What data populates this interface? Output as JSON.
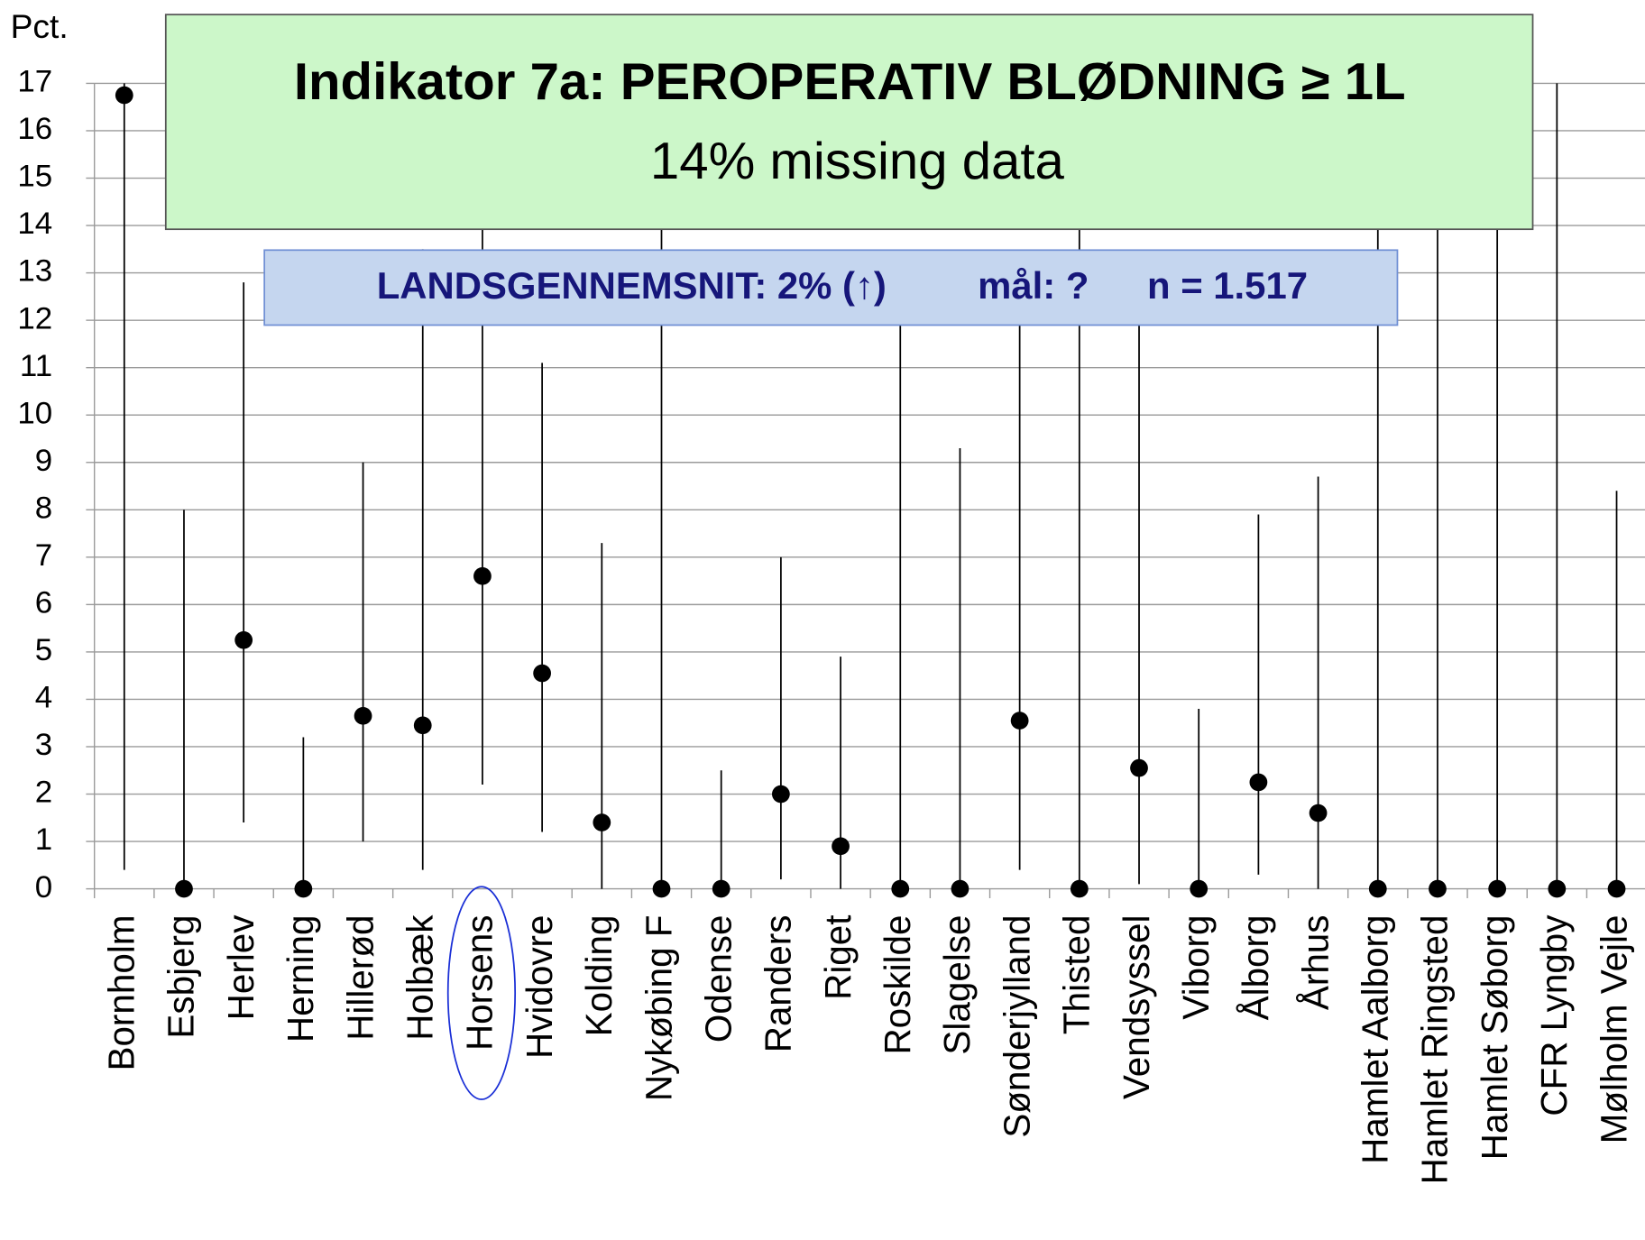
{
  "chart_data": {
    "type": "errorbar",
    "title": "Indikator 7a: PEROPERATIV BLØDNING ≥ 1L",
    "subtitle": "14% missing data",
    "annotations": [
      "LANDSGENNEMSNIT: 2% (↑)",
      "mål: ?",
      "n = 1.517"
    ],
    "y_label": "Pct.",
    "categories": [
      "Bornholm",
      "Esbjerg",
      "Herlev",
      "Herning",
      "Hillerød",
      "Holbæk",
      "Horsens",
      "Hvidovre",
      "Kolding",
      "Nykøbing F",
      "Odense",
      "Randers",
      "Riget",
      "Roskilde",
      "Slagelse",
      "Sønderjylland",
      "Thisted",
      "Vendsyssel",
      "Viborg",
      "Ålborg",
      "Århus",
      "Hamlet Aalborg",
      "Hamlet Ringsted",
      "Hamlet Søborg",
      "CFR Lyngby",
      "Mølholm Vejle"
    ],
    "values": [
      16.75,
      0,
      5.25,
      0,
      3.65,
      3.45,
      6.6,
      4.55,
      1.4,
      0,
      0,
      2.0,
      0.9,
      0,
      0,
      3.55,
      0,
      2.55,
      0,
      2.25,
      1.6,
      0,
      0,
      0,
      0,
      0
    ],
    "lower": [
      0.4,
      0,
      1.4,
      0,
      1.0,
      0.4,
      2.2,
      1.2,
      0,
      0,
      0,
      0.2,
      0,
      0,
      0,
      0.4,
      0,
      0.1,
      0,
      0.3,
      0,
      0,
      0,
      0,
      0,
      0
    ],
    "upper": [
      17,
      8,
      12.8,
      3.2,
      9.0,
      13.5,
      15.5,
      11.1,
      7.3,
      14.5,
      2.5,
      7.0,
      4.9,
      12,
      9.3,
      13,
      15,
      12.5,
      3.8,
      7.9,
      8.7,
      16,
      17,
      17,
      17,
      8.4
    ],
    "color": "#000000",
    "reference_line": {
      "value": 2,
      "color": "#1f6fc5"
    },
    "ylim": [
      0,
      17
    ],
    "yticks": [
      0,
      1,
      2,
      3,
      4,
      5,
      6,
      7,
      8,
      9,
      10,
      11,
      12,
      13,
      14,
      15,
      16,
      17
    ],
    "grid": true
  }
}
